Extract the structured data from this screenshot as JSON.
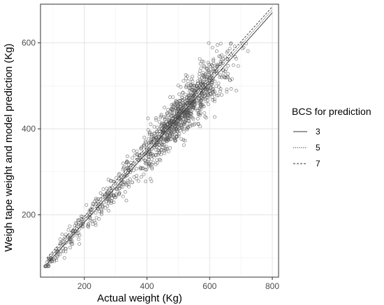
{
  "chart_data": {
    "type": "scatter",
    "title": "",
    "xlabel": "Actual weight (Kg)",
    "ylabel": "Weigh tape weight and model prediction (Kg)",
    "xlim": [
      60,
      820
    ],
    "ylim": [
      55,
      690
    ],
    "x_ticks": [
      200,
      400,
      600,
      800
    ],
    "y_ticks": [
      200,
      400,
      600
    ],
    "x_tick_labels": [
      "200",
      "400",
      "600",
      "800"
    ],
    "y_tick_labels": [
      "200",
      "400",
      "600"
    ],
    "grid": true,
    "legend": {
      "title": "BCS for prediction",
      "placement": "right",
      "entries": [
        {
          "label": "3",
          "style": "solid"
        },
        {
          "label": "5",
          "style": "dotted"
        },
        {
          "label": "7",
          "style": "dashed"
        }
      ]
    },
    "lines": [
      {
        "name": "3",
        "style": "solid",
        "x": [
          80,
          800
        ],
        "y": [
          85,
          670
        ]
      },
      {
        "name": "5",
        "style": "dotted",
        "x": [
          80,
          800
        ],
        "y": [
          92,
          677
        ]
      },
      {
        "name": "7",
        "style": "dashed",
        "x": [
          80,
          800
        ],
        "y": [
          99,
          684
        ]
      }
    ],
    "scatter": {
      "marker": "open-circle",
      "approx_count": 1200,
      "x_range": [
        75,
        730
      ],
      "y_range": [
        80,
        605
      ],
      "y_cap": 600,
      "color": "#555555"
    }
  }
}
